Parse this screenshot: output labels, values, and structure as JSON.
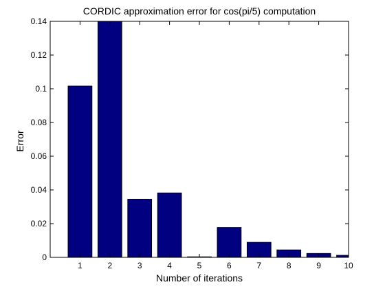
{
  "chart_data": {
    "type": "bar",
    "title": "CORDIC approximation error for cos(pi/5) computation",
    "xlabel": "Number of iterations",
    "ylabel": "Error",
    "categories": [
      "1",
      "2",
      "3",
      "4",
      "5",
      "6",
      "7",
      "8",
      "9",
      "10"
    ],
    "values": [
      0.1016,
      0.14,
      0.0345,
      0.0382,
      0.0003,
      0.0177,
      0.0089,
      0.0044,
      0.0023,
      0.0012
    ],
    "ylim": [
      0,
      0.14
    ],
    "xlim": [
      0,
      10
    ],
    "yticks": [
      "0",
      "0.02",
      "0.04",
      "0.06",
      "0.08",
      "0.1",
      "0.12",
      "0.14"
    ],
    "ytick_values": [
      0,
      0.02,
      0.04,
      0.06,
      0.08,
      0.1,
      0.12,
      0.14
    ],
    "grid": false,
    "colors": {
      "bar": "#000080",
      "bar_edge": "#000000"
    }
  }
}
